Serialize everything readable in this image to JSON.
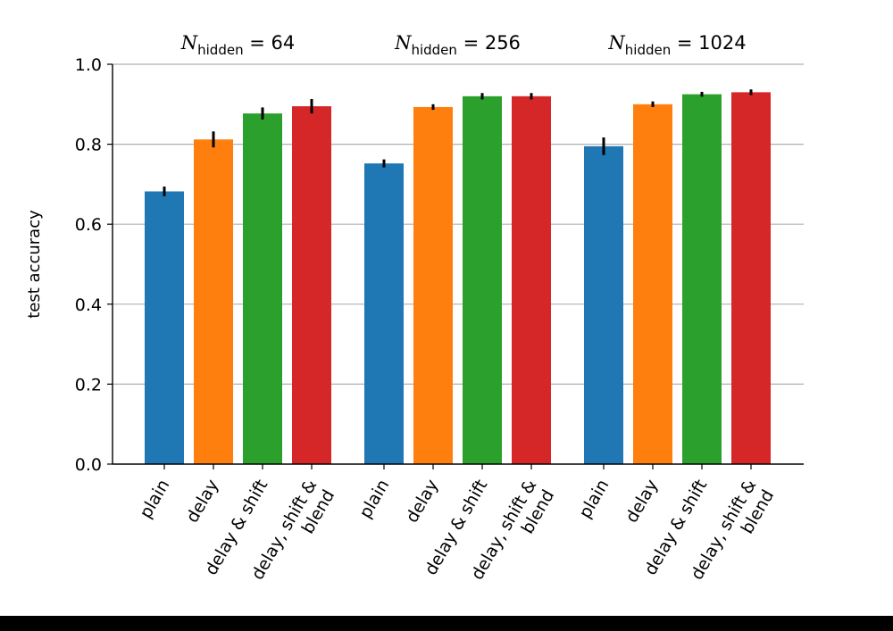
{
  "chart_data": {
    "type": "bar",
    "ylabel": "test accuracy",
    "ylim": [
      0,
      1.0
    ],
    "yticks": [
      "0.0",
      "0.2",
      "0.4",
      "0.6",
      "0.8",
      "1.0"
    ],
    "grid": "horizontal",
    "categories": [
      "plain",
      "delay",
      "delay & shift",
      "delay, shift & blend"
    ],
    "category_lines": [
      [
        "plain"
      ],
      [
        "delay"
      ],
      [
        "delay & shift"
      ],
      [
        "delay, shift &",
        "blend"
      ]
    ],
    "colors": [
      "#1f77b4",
      "#ff7f0e",
      "#2ca02c",
      "#d62728"
    ],
    "groups": [
      {
        "title": "N_hidden = 64",
        "title_var": "N",
        "title_sub": "hidden",
        "title_rest": " = 64",
        "values": [
          0.682,
          0.812,
          0.877,
          0.895
        ],
        "errors": [
          0.012,
          0.02,
          0.015,
          0.018
        ]
      },
      {
        "title": "N_hidden = 256",
        "title_var": "N",
        "title_sub": "hidden",
        "title_rest": " = 256",
        "values": [
          0.752,
          0.893,
          0.92,
          0.92
        ],
        "errors": [
          0.01,
          0.007,
          0.008,
          0.008
        ]
      },
      {
        "title": "N_hidden = 1024",
        "title_var": "N",
        "title_sub": "hidden",
        "title_rest": " = 1024",
        "values": [
          0.795,
          0.9,
          0.925,
          0.93
        ],
        "errors": [
          0.022,
          0.007,
          0.006,
          0.007
        ]
      }
    ]
  }
}
